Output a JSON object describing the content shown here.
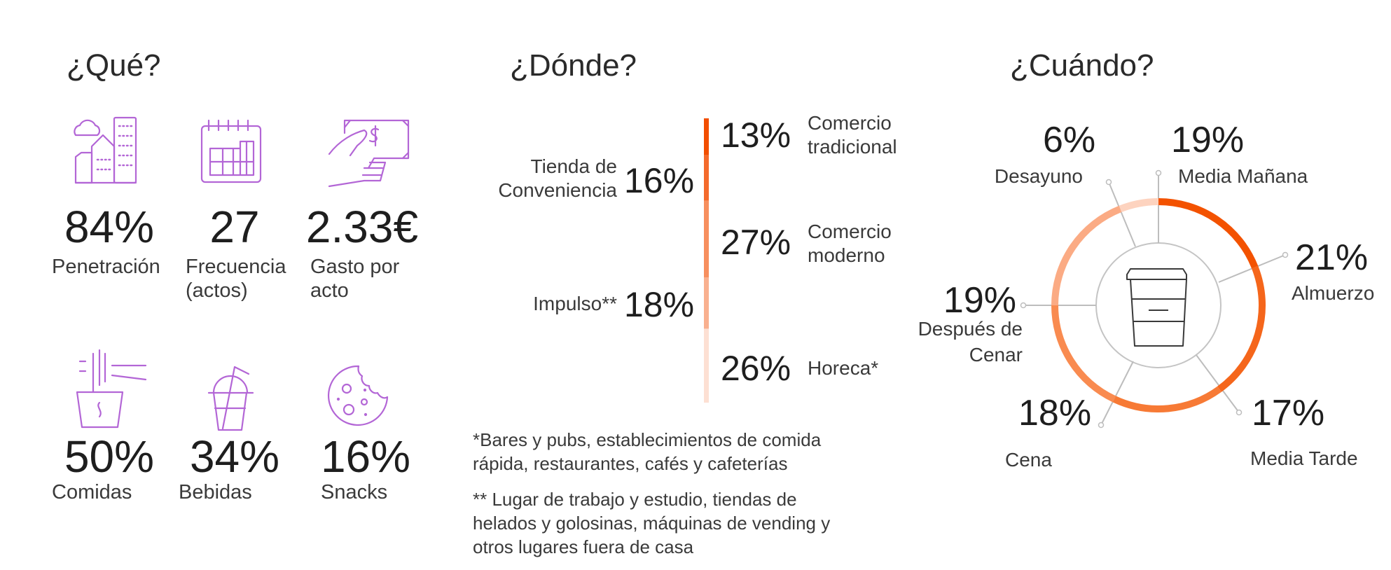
{
  "que": {
    "title": "¿Qué?",
    "metrics": [
      {
        "value": "84%",
        "label": "Penetración",
        "icon": "city-buildings-icon"
      },
      {
        "value": "27",
        "label": "Frecuencia\n(actos)",
        "icon": "calendar-icon"
      },
      {
        "value": "2.33€",
        "label": "Gasto por\nacto",
        "icon": "hand-money-icon"
      }
    ],
    "categories": [
      {
        "value": "50%",
        "label": "Comidas",
        "icon": "noodle-cup-icon"
      },
      {
        "value": "34%",
        "label": "Bebidas",
        "icon": "drink-cup-straw-icon"
      },
      {
        "value": "16%",
        "label": "Snacks",
        "icon": "cookie-icon"
      }
    ],
    "icon_color": "#b366d6"
  },
  "donde": {
    "title": "¿Dónde?",
    "channels": [
      {
        "value": "13%",
        "label": "Comercio\ntradicional",
        "color": "#f24e00"
      },
      {
        "value": "16%",
        "label": "Tienda de\nConveniencia",
        "color": "#f46a2c"
      },
      {
        "value": "27%",
        "label": "Comercio\nmoderno",
        "color": "#f78f5e"
      },
      {
        "value": "18%",
        "label": "Impulso**",
        "color": "#f9b08f"
      },
      {
        "value": "26%",
        "label": "Horeca*",
        "color": "#fde0d3"
      }
    ],
    "footnotes": [
      "*Bares y pubs, establecimientos de comida\nrápida, restaurantes, cafés y cafeterías",
      "** Lugar de trabajo y estudio, tiendas de\nhelados y golosinas, máquinas de vending y\notros lugares fuera de casa"
    ]
  },
  "cuando": {
    "title": "¿Cuándo?",
    "center_icon": "coffee-cup-icon",
    "moments": [
      {
        "value": "19%",
        "label": "Media Mañana",
        "color": "#f35200"
      },
      {
        "value": "21%",
        "label": "Almuerzo",
        "color": "#f5661b"
      },
      {
        "value": "17%",
        "label": "Media Tarde",
        "color": "#f77a35"
      },
      {
        "value": "18%",
        "label": "Cena",
        "color": "#f98b50"
      },
      {
        "value": "19%",
        "label": "Después de\nCenar",
        "color": "#fbab84"
      },
      {
        "value": "6%",
        "label": "Desayuno",
        "color": "#fdd3bf"
      }
    ],
    "leader_color": "#bdbdbd"
  }
}
